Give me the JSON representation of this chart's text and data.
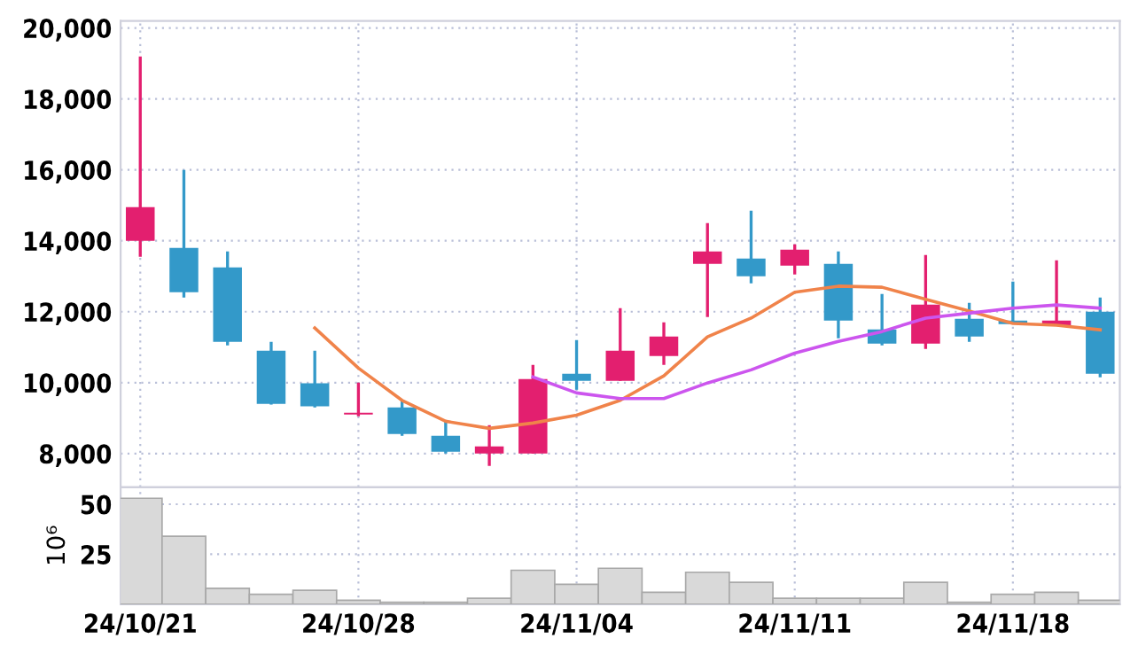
{
  "chart_data": [
    {
      "type": "candlestick",
      "categories": [
        null,
        null,
        null,
        null,
        null,
        null,
        null,
        null,
        null,
        null,
        null,
        null,
        null,
        null,
        null,
        null,
        null,
        null,
        null,
        null,
        null,
        null,
        null
      ],
      "ohlc": [
        [
          14000,
          19200,
          13550,
          14950
        ],
        [
          13800,
          16000,
          12400,
          12550
        ],
        [
          13250,
          13700,
          11050,
          11150
        ],
        [
          10900,
          11150,
          9380,
          9400
        ],
        [
          9980,
          10900,
          9300,
          9330
        ],
        [
          9100,
          10000,
          9050,
          9150
        ],
        [
          9300,
          9500,
          8500,
          8550
        ],
        [
          8500,
          8900,
          8000,
          8050
        ],
        [
          8000,
          8800,
          7650,
          8200
        ],
        [
          8000,
          10500,
          8000,
          10100
        ],
        [
          10250,
          11200,
          9800,
          10050
        ],
        [
          10050,
          12100,
          10050,
          10900
        ],
        [
          10750,
          11700,
          10500,
          11300
        ],
        [
          13350,
          14500,
          11850,
          13700
        ],
        [
          13500,
          14850,
          12800,
          13000
        ],
        [
          13300,
          13900,
          13050,
          13750
        ],
        [
          13350,
          13700,
          11250,
          11750
        ],
        [
          11500,
          12500,
          11050,
          11100
        ],
        [
          11100,
          13600,
          10950,
          12200
        ],
        [
          11800,
          12250,
          11150,
          11300
        ],
        [
          11750,
          12850,
          11650,
          11650
        ],
        [
          11600,
          13450,
          11600,
          11750
        ],
        [
          12000,
          12400,
          10150,
          10250
        ]
      ],
      "colors": [
        "#e31f6f",
        "#3399c9",
        "#3399c9",
        "#3399c9",
        "#3399c9",
        "#e31f6f",
        "#3399c9",
        "#3399c9",
        "#e31f6f",
        "#e31f6f",
        "#3399c9",
        "#e31f6f",
        "#e31f6f",
        "#e31f6f",
        "#3399c9",
        "#e31f6f",
        "#3399c9",
        "#3399c9",
        "#e31f6f",
        "#3399c9",
        "#3399c9",
        "#e31f6f",
        "#3399c9"
      ],
      "series": [
        {
          "type": "line",
          "color": "#f0834a",
          "values": [
            null,
            null,
            null,
            null,
            11540,
            10410,
            9500,
            8910,
            8710,
            8860,
            9080,
            9500,
            10190,
            11290,
            11820,
            12550,
            12720,
            12690,
            12350,
            12020,
            11670,
            11620,
            11490
          ]
        },
        {
          "type": "line",
          "color": "#cc55ee",
          "values": [
            null,
            null,
            null,
            null,
            null,
            null,
            null,
            null,
            null,
            10160,
            9710,
            9550,
            9550,
            9990,
            10360,
            10830,
            11160,
            11440,
            11820,
            11960,
            12100,
            12190,
            12100
          ]
        }
      ],
      "ylim": [
        7050,
        20200
      ],
      "yticks": [
        {
          "value": 8000,
          "label": "8,000"
        },
        {
          "value": 10000,
          "label": "10,000"
        },
        {
          "value": 12000,
          "label": "12,000"
        },
        {
          "value": 14000,
          "label": "14,000"
        },
        {
          "value": 16000,
          "label": "16,000"
        },
        {
          "value": 18000,
          "label": "18,000"
        },
        {
          "value": 20000,
          "label": "20,000"
        }
      ],
      "grid": true,
      "tick_labels": "y"
    },
    {
      "type": "bar",
      "categories": [
        "24/10/21",
        null,
        null,
        null,
        null,
        "24/10/28",
        null,
        null,
        null,
        null,
        "24/11/04",
        null,
        null,
        null,
        null,
        "24/11/11",
        null,
        null,
        null,
        null,
        "24/11/18",
        null,
        null
      ],
      "values": [
        53,
        34,
        8,
        5,
        7,
        2,
        1,
        1,
        3,
        17,
        10,
        18,
        6,
        16,
        11,
        3,
        3,
        3,
        11,
        1,
        5,
        6,
        2
      ],
      "color": "#d9d9d9",
      "ylabel": "10⁶",
      "ylim": [
        0,
        58.5
      ],
      "yticks": [
        25,
        50
      ],
      "grid": true
    }
  ]
}
